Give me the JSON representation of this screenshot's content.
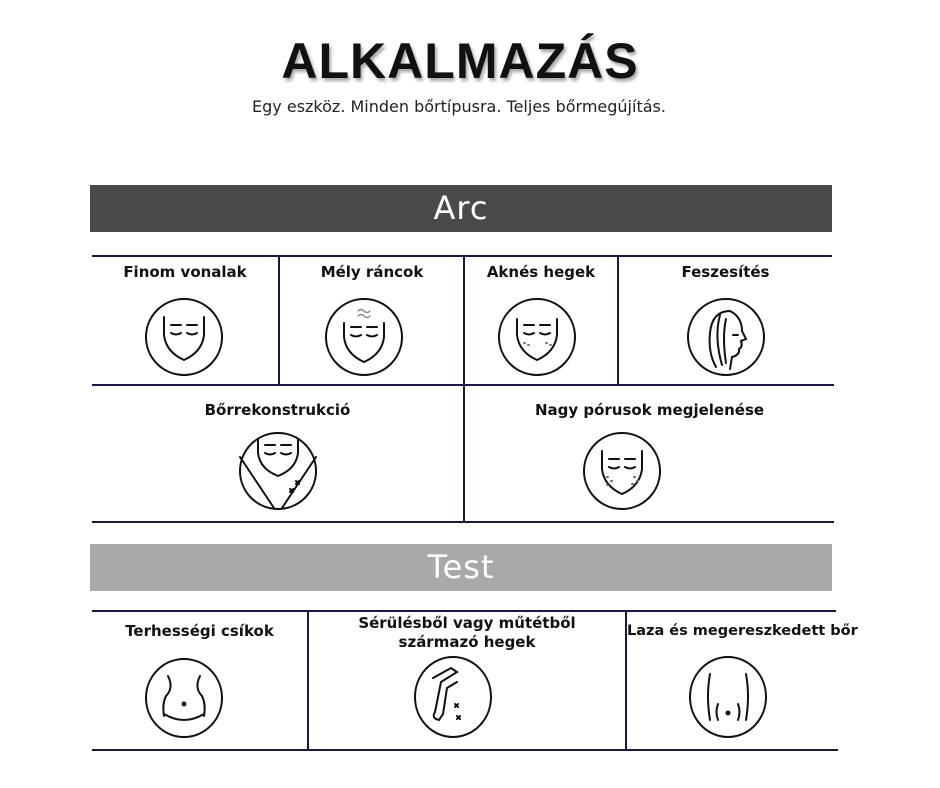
{
  "header": {
    "title": "ALKALMAZÁS",
    "subtitle": "Egy eszköz. Minden bőrtípusra. Teljes bőrmegújítás."
  },
  "sections": [
    {
      "title": "Arc",
      "color": "#4a4a4a",
      "items": [
        {
          "label": "Finom vonalak",
          "icon": "face-fine-lines-icon"
        },
        {
          "label": "Mély ráncok",
          "icon": "face-deep-wrinkles-icon"
        },
        {
          "label": "Aknés hegek",
          "icon": "face-acne-scars-icon"
        },
        {
          "label": "Feszesítés",
          "icon": "face-profile-tightening-icon"
        },
        {
          "label": "Bőrrekonstrukció",
          "icon": "face-neck-reconstruction-icon"
        },
        {
          "label": "Nagy pórusok megjelenése",
          "icon": "face-large-pores-icon"
        }
      ]
    },
    {
      "title": "Test",
      "color": "#a9a9a9",
      "items": [
        {
          "label": "Terhességi csíkok",
          "icon": "belly-stretch-marks-icon"
        },
        {
          "label": "Sérülésből vagy műtétből származó hegek",
          "icon": "leg-scars-icon"
        },
        {
          "label": "Laza és megereszkedett bőr",
          "icon": "loose-skin-torso-icon"
        }
      ]
    }
  ]
}
